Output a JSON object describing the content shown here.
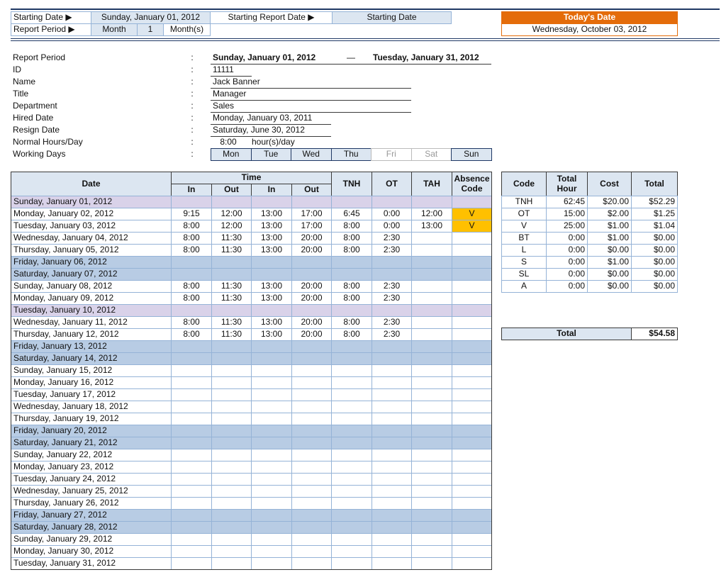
{
  "header": {
    "starting_date_label": "Starting Date ▶",
    "starting_date": "Sunday, January 01, 2012",
    "starting_report_date_label": "Starting Report Date ▶",
    "starting_report_date": "Starting Date",
    "report_period_label": "Report Period ▶",
    "period_unit": "Month",
    "period_count": "1",
    "period_suffix": "Month(s)",
    "todays_date_label": "Today's Date",
    "todays_date": "Wednesday, October 03, 2012"
  },
  "info": {
    "separator": ":",
    "range_dash": "—",
    "rows": [
      {
        "label": "Report Period",
        "value": "Sunday, January 01, 2012",
        "value_end": "Tuesday, January 31, 2012"
      },
      {
        "label": "ID",
        "value": "11111"
      },
      {
        "label": "Name",
        "value": "Jack Banner"
      },
      {
        "label": "Title",
        "value": "Manager"
      },
      {
        "label": "Department",
        "value": "Sales"
      },
      {
        "label": "Hired Date",
        "value": "Monday, January 03, 2011"
      },
      {
        "label": "Resign Date",
        "value": "Saturday, June 30, 2012"
      },
      {
        "label": "Normal Hours/Day",
        "value": "8:00",
        "unit": "hour(s)/day"
      },
      {
        "label": "Working Days",
        "days": [
          {
            "name": "Mon",
            "active": true
          },
          {
            "name": "Tue",
            "active": true
          },
          {
            "name": "Wed",
            "active": true
          },
          {
            "name": "Thu",
            "active": true
          },
          {
            "name": "Fri",
            "active": false
          },
          {
            "name": "Sat",
            "active": false
          },
          {
            "name": "Sun",
            "active": true
          }
        ]
      }
    ]
  },
  "timesheet": {
    "headers": {
      "date": "Date",
      "time": "Time",
      "time_columns": [
        "In",
        "Out",
        "In",
        "Out"
      ],
      "tnh": "TNH",
      "ot": "OT",
      "tah": "TAH",
      "absence": "Absence Code"
    },
    "rows": [
      {
        "date": "Sunday, January 01, 2012",
        "color": "#d9d2e9"
      },
      {
        "date": "Monday, January 02, 2012",
        "cells": [
          "9:15",
          "12:00",
          "13:00",
          "17:00",
          "6:45",
          "0:00",
          "12:00",
          "V"
        ],
        "code_color": "#ffc000"
      },
      {
        "date": "Tuesday, January 03, 2012",
        "cells": [
          "8:00",
          "12:00",
          "13:00",
          "17:00",
          "8:00",
          "0:00",
          "13:00",
          "V"
        ],
        "code_color": "#ffc000"
      },
      {
        "date": "Wednesday, January 04, 2012",
        "cells": [
          "8:00",
          "11:30",
          "13:00",
          "20:00",
          "8:00",
          "2:30",
          null,
          null
        ]
      },
      {
        "date": "Thursday, January 05, 2012",
        "cells": [
          "8:00",
          "11:30",
          "13:00",
          "20:00",
          "8:00",
          "2:30",
          null,
          null
        ]
      },
      {
        "date": "Friday, January 06, 2012",
        "color": "#b8cce4"
      },
      {
        "date": "Saturday, January 07, 2012",
        "color": "#b8cce4"
      },
      {
        "date": "Sunday, January 08, 2012",
        "cells": [
          "8:00",
          "11:30",
          "13:00",
          "20:00",
          "8:00",
          "2:30",
          null,
          null
        ]
      },
      {
        "date": "Monday, January 09, 2012",
        "cells": [
          "8:00",
          "11:30",
          "13:00",
          "20:00",
          "8:00",
          "2:30",
          null,
          null
        ]
      },
      {
        "date": "Tuesday, January 10, 2012",
        "color": "#d9d2e9"
      },
      {
        "date": "Wednesday, January 11, 2012",
        "cells": [
          "8:00",
          "11:30",
          "13:00",
          "20:00",
          "8:00",
          "2:30",
          null,
          null
        ]
      },
      {
        "date": "Thursday, January 12, 2012",
        "cells": [
          "8:00",
          "11:30",
          "13:00",
          "20:00",
          "8:00",
          "2:30",
          null,
          null
        ]
      },
      {
        "date": "Friday, January 13, 2012",
        "color": "#b8cce4"
      },
      {
        "date": "Saturday, January 14, 2012",
        "color": "#b8cce4"
      },
      {
        "date": "Sunday, January 15, 2012"
      },
      {
        "date": "Monday, January 16, 2012"
      },
      {
        "date": "Tuesday, January 17, 2012"
      },
      {
        "date": "Wednesday, January 18, 2012"
      },
      {
        "date": "Thursday, January 19, 2012"
      },
      {
        "date": "Friday, January 20, 2012",
        "color": "#b8cce4"
      },
      {
        "date": "Saturday, January 21, 2012",
        "color": "#b8cce4"
      },
      {
        "date": "Sunday, January 22, 2012"
      },
      {
        "date": "Monday, January 23, 2012"
      },
      {
        "date": "Tuesday, January 24, 2012"
      },
      {
        "date": "Wednesday, January 25, 2012"
      },
      {
        "date": "Thursday, January 26, 2012"
      },
      {
        "date": "Friday, January 27, 2012",
        "color": "#b8cce4"
      },
      {
        "date": "Saturday, January 28, 2012",
        "color": "#b8cce4"
      },
      {
        "date": "Sunday, January 29, 2012"
      },
      {
        "date": "Monday, January 30, 2012"
      },
      {
        "date": "Tuesday, January 31, 2012"
      }
    ]
  },
  "summary": {
    "headers": [
      "Code",
      "Total Hour",
      "Cost",
      "Total"
    ],
    "rows": [
      [
        "TNH",
        "62:45",
        "$20.00",
        "$52.29"
      ],
      [
        "OT",
        "15:00",
        "$2.00",
        "$1.25"
      ],
      [
        "V",
        "25:00",
        "$1.00",
        "$1.04"
      ],
      [
        "BT",
        "0:00",
        "$1.00",
        "$0.00"
      ],
      [
        "L",
        "0:00",
        "$0.00",
        "$0.00"
      ],
      [
        "S",
        "0:00",
        "$1.00",
        "$0.00"
      ],
      [
        "SL",
        "0:00",
        "$0.00",
        "$0.00"
      ],
      [
        "A",
        "0:00",
        "$0.00",
        "$0.00"
      ]
    ],
    "total_label": "Total",
    "total": "$54.58"
  }
}
